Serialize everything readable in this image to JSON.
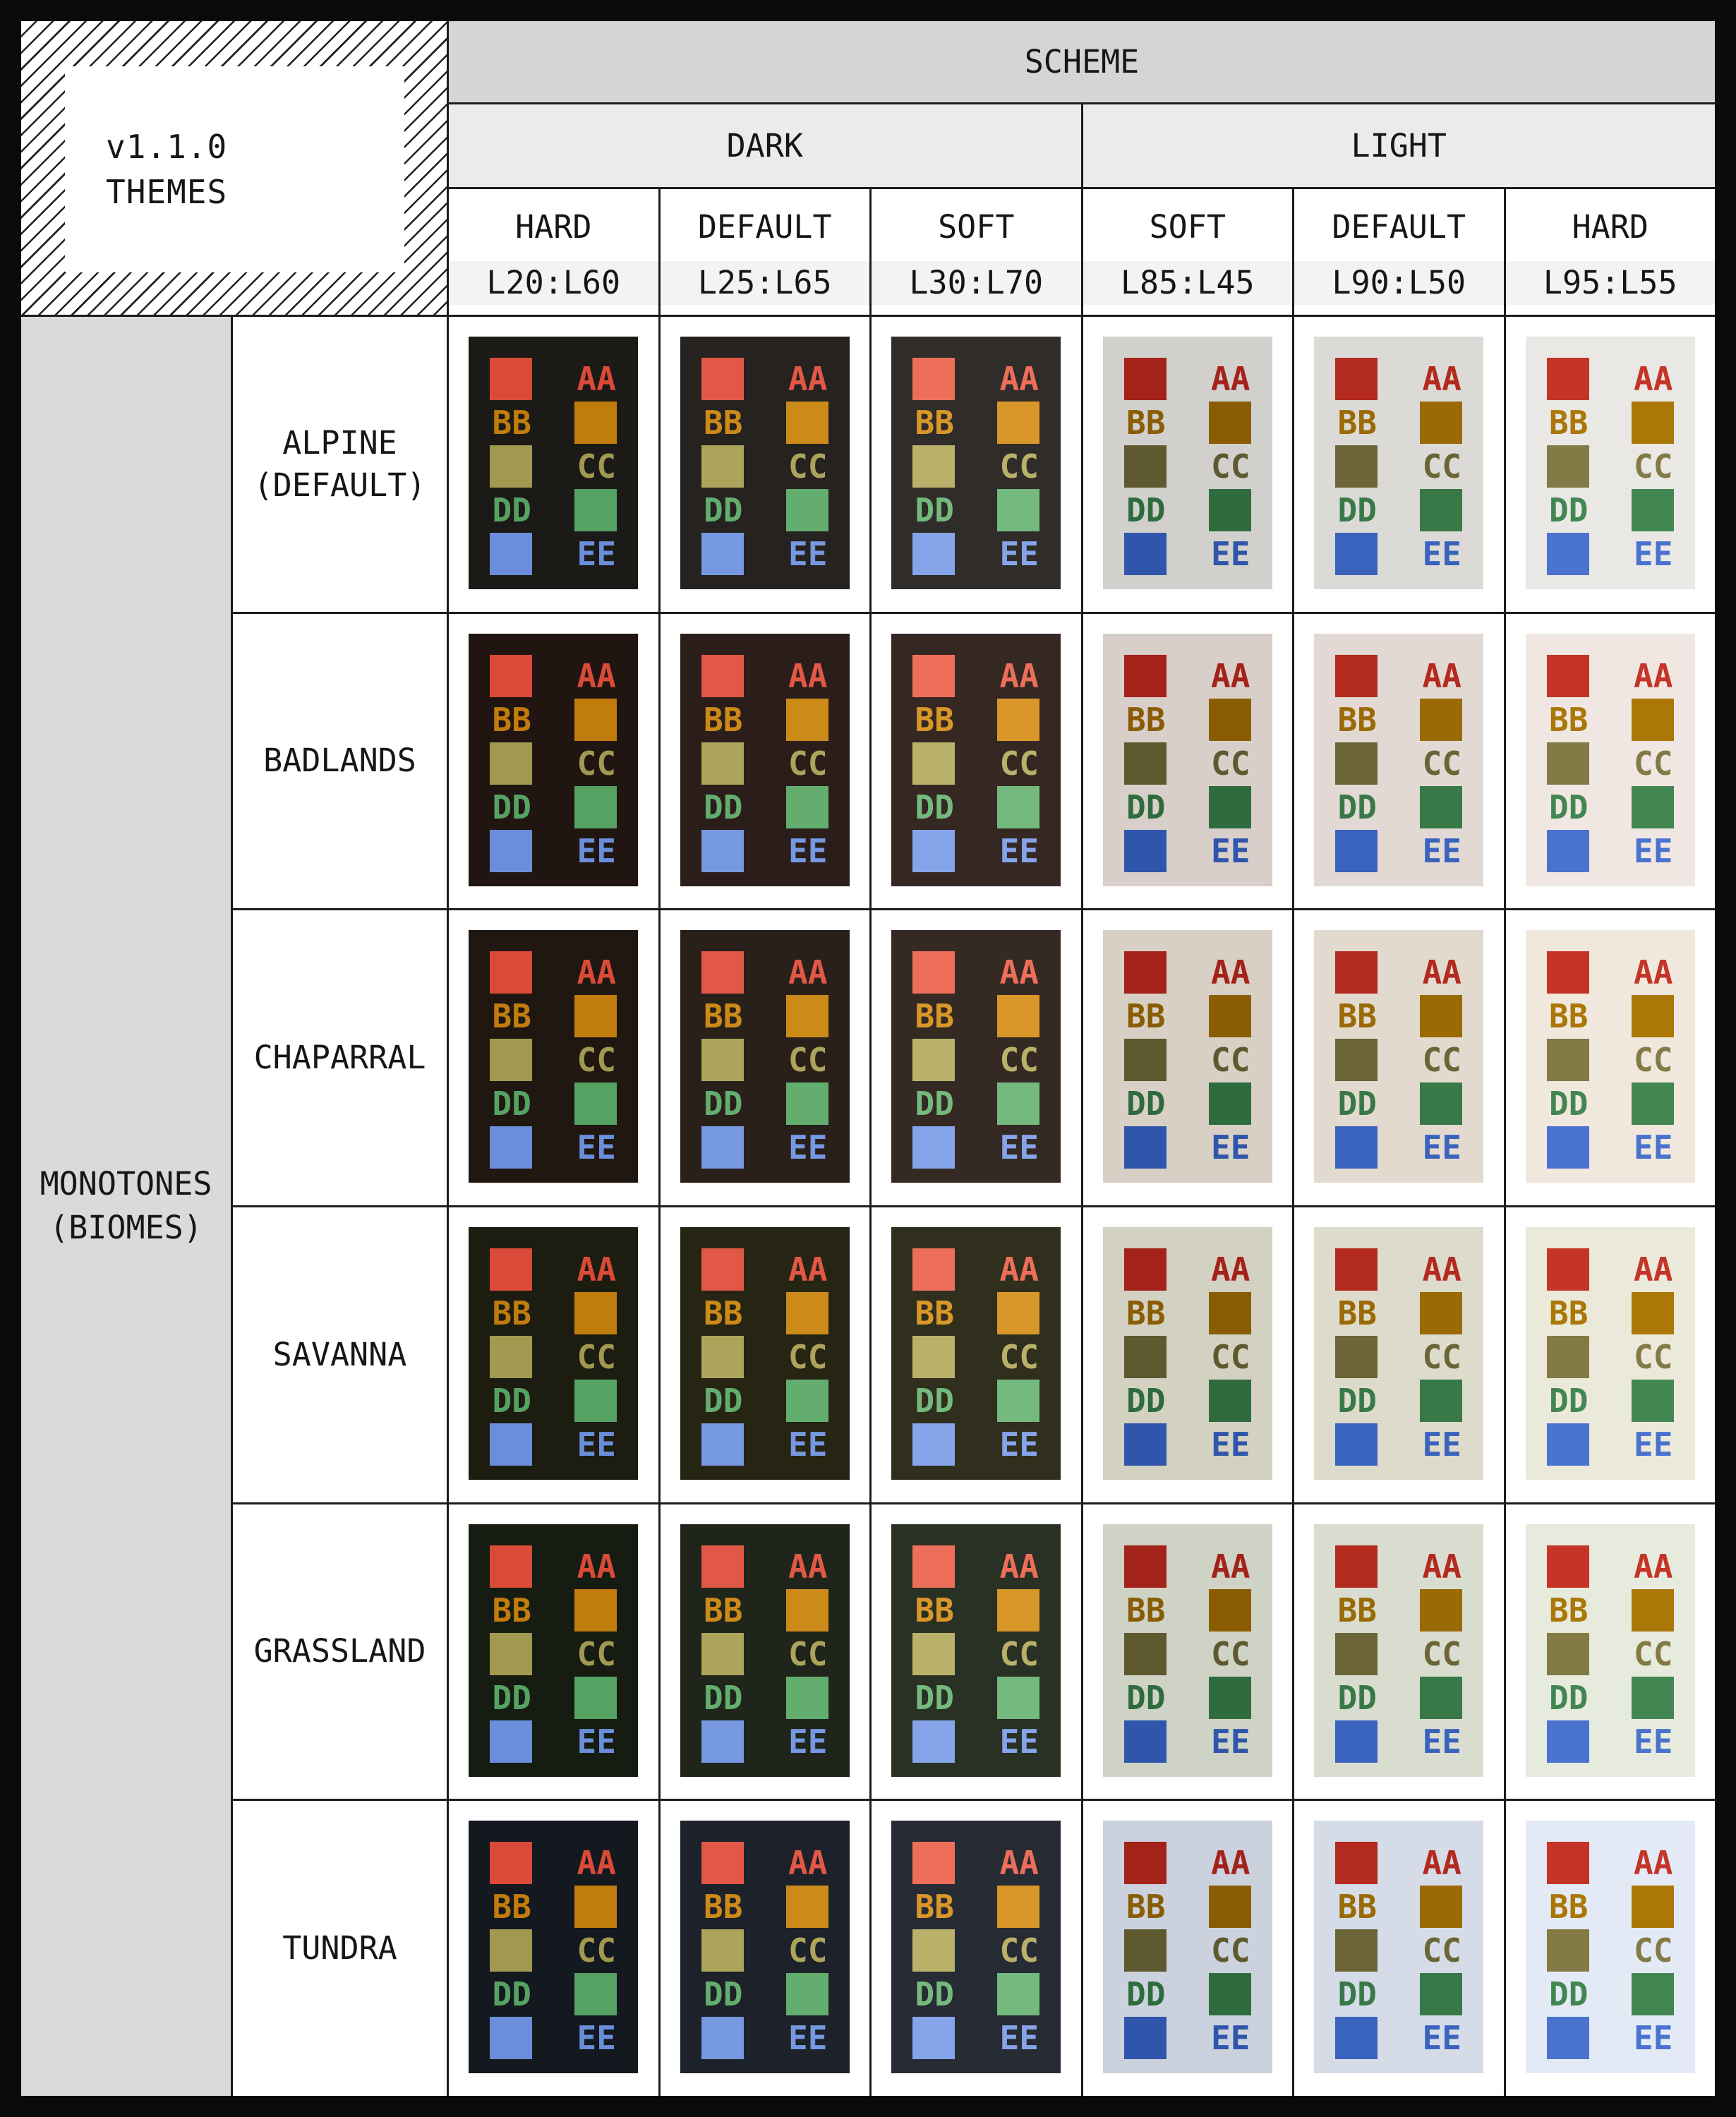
{
  "corner": {
    "version_label": "v1.1.0",
    "product_label": "THEMES"
  },
  "header": {
    "scheme_label": "SCHEME",
    "dark_label": "DARK",
    "light_label": "LIGHT",
    "columns": [
      {
        "scheme": "DARK",
        "variant": "HARD",
        "ratio": "L20:L60"
      },
      {
        "scheme": "DARK",
        "variant": "DEFAULT",
        "ratio": "L25:L65"
      },
      {
        "scheme": "DARK",
        "variant": "SOFT",
        "ratio": "L30:L70"
      },
      {
        "scheme": "LIGHT",
        "variant": "SOFT",
        "ratio": "L85:L45"
      },
      {
        "scheme": "LIGHT",
        "variant": "DEFAULT",
        "ratio": "L90:L50"
      },
      {
        "scheme": "LIGHT",
        "variant": "HARD",
        "ratio": "L95:L55"
      }
    ]
  },
  "sidebar": {
    "label_line1": "MONOTONES",
    "label_line2": "(BIOMES)"
  },
  "swatch_labels": [
    "AA",
    "BB",
    "CC",
    "DD",
    "EE"
  ],
  "accent_palettes_by_column": [
    {
      "name": "dark-hard-L60",
      "accents": [
        "#d94b38",
        "#c07c0c",
        "#a19950",
        "#55a263",
        "#6a8eda"
      ]
    },
    {
      "name": "dark-default-L65",
      "accents": [
        "#e25846",
        "#cc8a18",
        "#aca45b",
        "#63ad6f",
        "#7598e1"
      ]
    },
    {
      "name": "dark-soft-L70",
      "accents": [
        "#ed6e59",
        "#d99729",
        "#b9b16a",
        "#74b97d",
        "#85a4e9"
      ]
    },
    {
      "name": "light-soft-L45",
      "accents": [
        "#a3221a",
        "#8a5d04",
        "#5f5930",
        "#2e6c3d",
        "#2f56ab"
      ]
    },
    {
      "name": "light-default-L50",
      "accents": [
        "#b32a1f",
        "#9a6a05",
        "#6b6537",
        "#387947",
        "#3a63bd"
      ]
    },
    {
      "name": "light-hard-L55",
      "accents": [
        "#c53527",
        "#ab7707",
        "#837a45",
        "#428751",
        "#4a72cf"
      ]
    }
  ],
  "rows": [
    {
      "name_lines": [
        "ALPINE",
        "(DEFAULT)"
      ],
      "card_backgrounds": [
        "#1c1a17",
        "#252220",
        "#2f2c29",
        "#d1d0cd",
        "#dbdad7",
        "#e9e8e5"
      ]
    },
    {
      "name_lines": [
        "BADLANDS"
      ],
      "card_backgrounds": [
        "#211512",
        "#2b1e1a",
        "#352823",
        "#d9cfca",
        "#e3d9d4",
        "#f1e7e2"
      ]
    },
    {
      "name_lines": [
        "CHAPARRAL"
      ],
      "card_backgrounds": [
        "#201711",
        "#2a201a",
        "#342a23",
        "#d8d0c5",
        "#e2dacf",
        "#f0e8dd"
      ]
    },
    {
      "name_lines": [
        "SAVANNA"
      ],
      "card_backgrounds": [
        "#1d1c10",
        "#262514",
        "#302f1e",
        "#d3d1c1",
        "#dddbcb",
        "#ebe9d9"
      ]
    },
    {
      "name_lines": [
        "GRASSLAND"
      ],
      "card_backgrounds": [
        "#161c12",
        "#1f251b",
        "#293024",
        "#ced3c6",
        "#d8ddd0",
        "#e6ebde"
      ]
    },
    {
      "name_lines": [
        "TUNDRA"
      ],
      "card_backgrounds": [
        "#14181f",
        "#1d2129",
        "#272b33",
        "#cbd2de",
        "#d5dce8",
        "#e3eaf6"
      ]
    }
  ],
  "structure_colors": {
    "page_background": "#0a0a0a",
    "grid_line": "#1c1c1c",
    "scheme_header_bg": "#d5d5d5",
    "group_header_bg": "#ebebeb",
    "column_header_bg": "#ffffff",
    "ratio_band_bg": "#f3f3f3",
    "sidebar_bg": "#dadada",
    "cell_bg": "#ffffff",
    "text": "#161616"
  }
}
